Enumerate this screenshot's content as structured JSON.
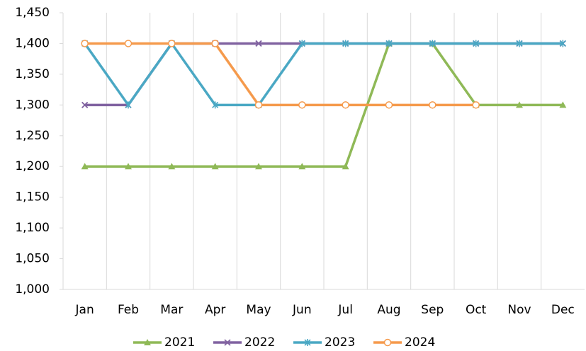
{
  "chart_data": {
    "type": "line",
    "categories": [
      "Jan",
      "Feb",
      "Mar",
      "Apr",
      "May",
      "Jun",
      "Jul",
      "Aug",
      "Sep",
      "Oct",
      "Nov",
      "Dec"
    ],
    "series": [
      {
        "name": "2021",
        "color": "#8fb957",
        "marker": "triangle",
        "values": [
          1200,
          1200,
          1200,
          1200,
          1200,
          1200,
          1200,
          1400,
          1400,
          1300,
          1300,
          1300
        ]
      },
      {
        "name": "2022",
        "color": "#8062a0",
        "marker": "x",
        "values": [
          1300,
          1300,
          1400,
          1400,
          1400,
          1400,
          1400,
          1400,
          1400,
          1400,
          1400,
          1400
        ]
      },
      {
        "name": "2023",
        "color": "#4aa8c4",
        "marker": "star",
        "values": [
          1400,
          1300,
          1400,
          1300,
          1300,
          1400,
          1400,
          1400,
          1400,
          1400,
          1400,
          1400
        ]
      },
      {
        "name": "2024",
        "color": "#f59a4c",
        "marker": "circle",
        "values": [
          1400,
          1400,
          1400,
          1400,
          1300,
          1300,
          1300,
          1300,
          1300,
          1300,
          null,
          null
        ]
      }
    ],
    "ylim": [
      1000,
      1450
    ],
    "yticks": [
      {
        "value": 1000,
        "label": "1,000"
      },
      {
        "value": 1050,
        "label": "1,050"
      },
      {
        "value": 1100,
        "label": "1,100"
      },
      {
        "value": 1150,
        "label": "1,150"
      },
      {
        "value": 1200,
        "label": "1,200"
      },
      {
        "value": 1250,
        "label": "1,250"
      },
      {
        "value": 1300,
        "label": "1,300"
      },
      {
        "value": 1350,
        "label": "1,350"
      },
      {
        "value": 1400,
        "label": "1,400"
      },
      {
        "value": 1450,
        "label": "1,450"
      }
    ],
    "grid": "vertical",
    "legend": "bottom"
  }
}
